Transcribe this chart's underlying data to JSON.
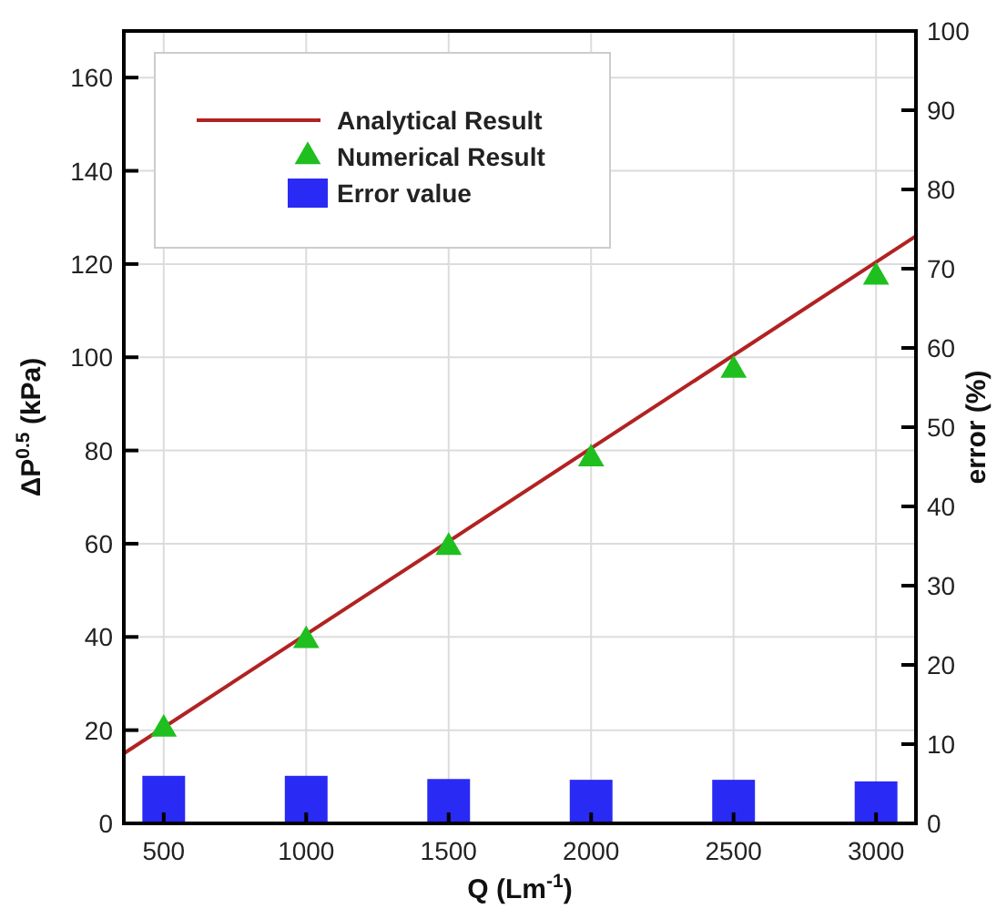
{
  "chart_data": {
    "type": "line",
    "xlabel": "Q (Lm$^{-1}$)",
    "ylabel": "ΔP$^{0.5}$ (kPa)",
    "y2label": "error (%)",
    "xlim": [
      360,
      3140
    ],
    "xticks": [
      500,
      1000,
      1500,
      2000,
      2500,
      3000
    ],
    "ylim": [
      0,
      170
    ],
    "yticks": [
      0,
      20,
      40,
      60,
      80,
      100,
      120,
      140,
      160
    ],
    "y2lim": [
      0,
      100
    ],
    "y2ticks": [
      0,
      10,
      20,
      30,
      40,
      50,
      60,
      70,
      80,
      90,
      100
    ],
    "grid": true,
    "legend": "top left",
    "series": [
      {
        "name": "Analytical Result",
        "color": "#b22222",
        "x": [
          360,
          3140
        ],
        "values": [
          15,
          126
        ],
        "marker": "none",
        "line_style": "solid"
      },
      {
        "name": "Numerical Result",
        "type": "scatter",
        "color": "#1fbf1f",
        "x": [
          500,
          1000,
          1500,
          2000,
          2500,
          3000
        ],
        "values": [
          21,
          40,
          60,
          79,
          98,
          118
        ],
        "marker": "triangle"
      },
      {
        "name": "Error value",
        "type": "bar",
        "color": "#2a2af5",
        "axis": "y2",
        "x": [
          500,
          1000,
          1500,
          2000,
          2500,
          3000
        ],
        "values": [
          6.0,
          6.0,
          5.6,
          5.5,
          5.5,
          5.3
        ]
      }
    ]
  }
}
